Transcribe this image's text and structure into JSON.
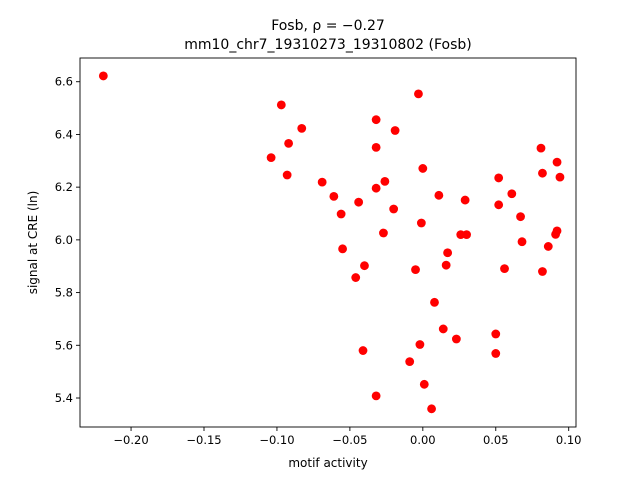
{
  "chart_data": {
    "type": "scatter",
    "title_line1": "Fosb, ρ = −0.27",
    "title_line2": "mm10_chr7_19310273_19310802 (Fosb)",
    "xlabel": "motif activity",
    "ylabel": "signal at CRE (ln)",
    "xlim": [
      -0.235,
      0.105
    ],
    "ylim": [
      5.29,
      6.69
    ],
    "xticks": [
      {
        "value": -0.2,
        "label": "−0.20"
      },
      {
        "value": -0.15,
        "label": "−0.15"
      },
      {
        "value": -0.1,
        "label": "−0.10"
      },
      {
        "value": -0.05,
        "label": "−0.05"
      },
      {
        "value": 0.0,
        "label": "0.00"
      },
      {
        "value": 0.05,
        "label": "0.05"
      },
      {
        "value": 0.1,
        "label": "0.10"
      }
    ],
    "yticks": [
      {
        "value": 5.4,
        "label": "5.4"
      },
      {
        "value": 5.6,
        "label": "5.6"
      },
      {
        "value": 5.8,
        "label": "5.8"
      },
      {
        "value": 6.0,
        "label": "6.0"
      },
      {
        "value": 6.2,
        "label": "6.2"
      },
      {
        "value": 6.4,
        "label": "6.4"
      },
      {
        "value": 6.6,
        "label": "6.6"
      }
    ],
    "grid": false,
    "marker_color": "#ff0000",
    "points": [
      [
        -0.219,
        6.622
      ],
      [
        -0.097,
        6.512
      ],
      [
        -0.083,
        6.423
      ],
      [
        -0.092,
        6.366
      ],
      [
        -0.104,
        6.312
      ],
      [
        -0.093,
        6.246
      ],
      [
        -0.069,
        6.219
      ],
      [
        -0.061,
        6.165
      ],
      [
        -0.056,
        6.098
      ],
      [
        -0.055,
        5.966
      ],
      [
        -0.044,
        6.143
      ],
      [
        -0.032,
        6.456
      ],
      [
        -0.032,
        6.351
      ],
      [
        -0.032,
        6.196
      ],
      [
        -0.026,
        6.222
      ],
      [
        -0.019,
        6.415
      ],
      [
        -0.02,
        6.117
      ],
      [
        -0.027,
        6.026
      ],
      [
        -0.04,
        5.902
      ],
      [
        -0.046,
        5.857
      ],
      [
        -0.041,
        5.58
      ],
      [
        -0.032,
        5.408
      ],
      [
        -0.003,
        6.554
      ],
      [
        0.0,
        6.271
      ],
      [
        -0.001,
        6.064
      ],
      [
        -0.005,
        5.887
      ],
      [
        0.011,
        6.169
      ],
      [
        0.016,
        5.904
      ],
      [
        0.017,
        5.951
      ],
      [
        0.008,
        5.763
      ],
      [
        0.014,
        5.662
      ],
      [
        -0.002,
        5.603
      ],
      [
        -0.009,
        5.538
      ],
      [
        0.001,
        5.452
      ],
      [
        0.006,
        5.359
      ],
      [
        0.029,
        6.151
      ],
      [
        0.026,
        6.02
      ],
      [
        0.03,
        6.02
      ],
      [
        0.023,
        5.624
      ],
      [
        0.052,
        6.235
      ],
      [
        0.052,
        6.133
      ],
      [
        0.061,
        6.175
      ],
      [
        0.067,
        6.088
      ],
      [
        0.068,
        5.993
      ],
      [
        0.056,
        5.891
      ],
      [
        0.05,
        5.643
      ],
      [
        0.05,
        5.569
      ],
      [
        0.081,
        6.348
      ],
      [
        0.082,
        6.253
      ],
      [
        0.092,
        6.295
      ],
      [
        0.094,
        6.238
      ],
      [
        0.092,
        6.034
      ],
      [
        0.091,
        6.021
      ],
      [
        0.086,
        5.975
      ],
      [
        0.082,
        5.88
      ]
    ]
  }
}
